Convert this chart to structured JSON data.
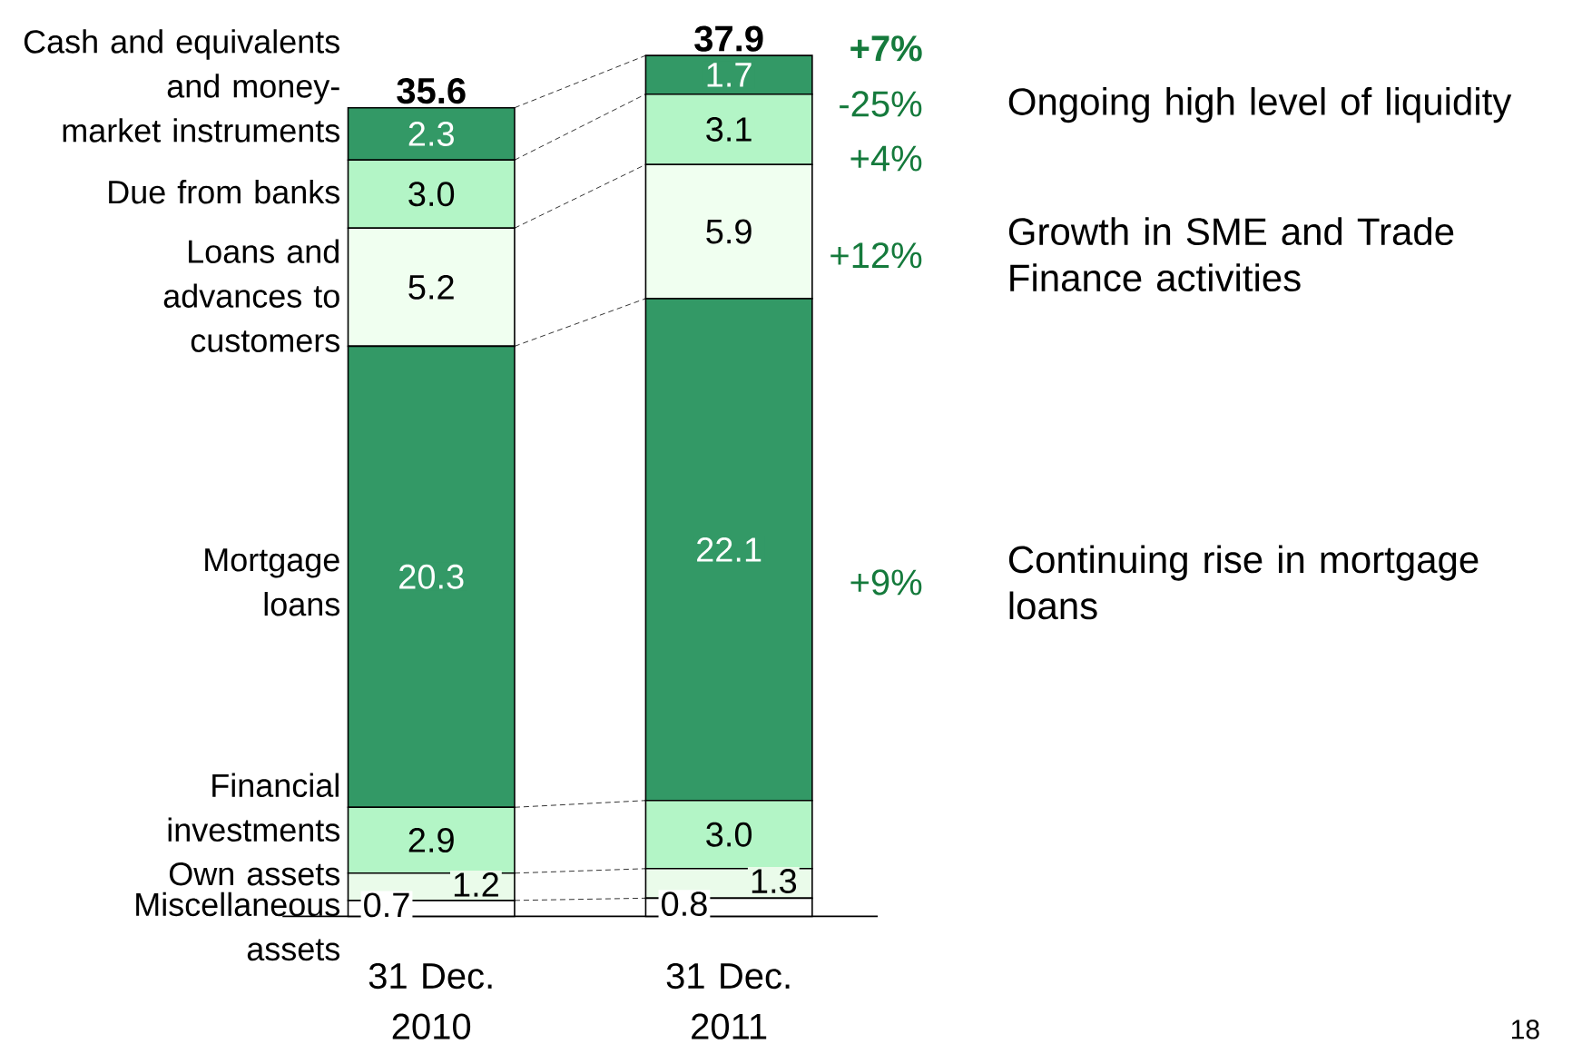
{
  "chart_data": {
    "type": "bar",
    "stacked": true,
    "categories": [
      "31 Dec. 2010",
      "31 Dec. 2011"
    ],
    "series": [
      {
        "name": "Miscellaneous assets",
        "color": "#ffffff",
        "values": [
          0.7,
          0.8
        ],
        "value_labels": [
          "0.7",
          "0.8"
        ]
      },
      {
        "name": "Own assets",
        "color": "#eafbea",
        "values": [
          1.2,
          1.3
        ],
        "value_labels": [
          "1.2",
          "1.3"
        ]
      },
      {
        "name": "Financial investments",
        "color": "#b3f5c6",
        "values": [
          2.9,
          3.0
        ],
        "value_labels": [
          "2.9",
          "3.0"
        ]
      },
      {
        "name": "Mortgage loans",
        "color": "#339966",
        "values": [
          20.3,
          22.1
        ],
        "value_labels": [
          "20.3",
          "22.1"
        ]
      },
      {
        "name": "Loans and advances to customers",
        "color": "#f0fff0",
        "values": [
          5.2,
          5.9
        ],
        "value_labels": [
          "5.2",
          "5.9"
        ]
      },
      {
        "name": "Due from banks",
        "color": "#b3f5c6",
        "values": [
          3.0,
          3.1
        ],
        "value_labels": [
          "3.0",
          "3.1"
        ]
      },
      {
        "name": "Cash and equivalents and money-market instruments",
        "color": "#339966",
        "values": [
          2.3,
          1.7
        ],
        "value_labels": [
          "2.3",
          "1.7"
        ]
      }
    ],
    "totals": [
      "35.6",
      "37.9"
    ],
    "annotations": [
      "**+7%**",
      "-25%",
      "+4%",
      "+12%",
      "+9%",
      "Ongoing high level of liquidity",
      "Growth in SME and Trade Finance activities",
      "Continuing rise in mortgage loans",
      "18"
    ]
  }
}
